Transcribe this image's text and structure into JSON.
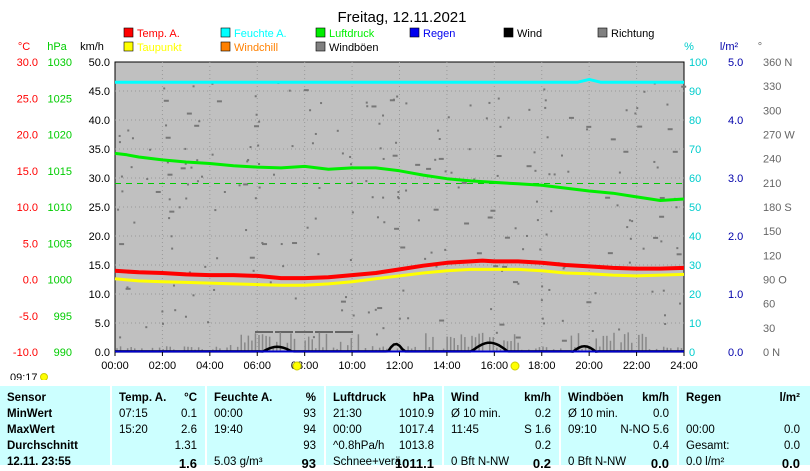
{
  "chart_data": {
    "type": "line",
    "title": "Freitag, 12.11.2021",
    "x_ticks": [
      "00:00",
      "02:00",
      "04:00",
      "06:00",
      "08:00",
      "10:00",
      "12:00",
      "14:00",
      "16:00",
      "18:00",
      "20:00",
      "22:00",
      "24:00"
    ],
    "xlim": [
      "00:00",
      "24:00"
    ],
    "axes": {
      "temp": {
        "unit": "°C",
        "ticks": [
          "30.0",
          "25.0",
          "20.0",
          "15.0",
          "10.0",
          "5.0",
          "0.0",
          "-5.0",
          "-10.0"
        ],
        "range": [
          -10,
          30
        ],
        "color": "#ff0000"
      },
      "pressure": {
        "unit": "hPa",
        "ticks": [
          "1030",
          "1025",
          "1020",
          "1015",
          "1010",
          "1005",
          "1000",
          "995",
          "990"
        ],
        "range": [
          990,
          1030
        ],
        "color": "#00cc00"
      },
      "speed": {
        "unit": "km/h",
        "ticks": [
          "50.0",
          "45.0",
          "40.0",
          "35.0",
          "30.0",
          "25.0",
          "20.0",
          "15.0",
          "10.0",
          "5.0",
          "0.0"
        ],
        "range": [
          0,
          50
        ],
        "color": "#000000"
      },
      "humidity": {
        "unit": "%",
        "ticks": [
          "100",
          "90",
          "80",
          "70",
          "60",
          "50",
          "40",
          "30",
          "20",
          "10",
          "0"
        ],
        "range": [
          0,
          100
        ],
        "color": "#00cccc"
      },
      "rain": {
        "unit": "l/m²",
        "ticks": [
          "5.0",
          "4.0",
          "3.0",
          "2.0",
          "1.0",
          "0.0"
        ],
        "range": [
          0,
          5
        ],
        "color": "#0000aa"
      },
      "direction": {
        "unit": "°",
        "ticks": [
          "360 N",
          "330",
          "300",
          "270 W",
          "240",
          "210",
          "180 S",
          "150",
          "120",
          "90 O",
          "60",
          "30",
          "0   N"
        ],
        "range": [
          0,
          360
        ],
        "color": "#666666"
      }
    },
    "legend": [
      {
        "name": "Temp. A.",
        "color": "#ff0000"
      },
      {
        "name": "Feuchte A.",
        "color": "#00ffff"
      },
      {
        "name": "Luftdruck",
        "color": "#00ee00"
      },
      {
        "name": "Regen",
        "color": "#0000ee"
      },
      {
        "name": "Wind",
        "color": "#000000"
      },
      {
        "name": "Richtung",
        "color": "#808080"
      },
      {
        "name": "Taupunkt",
        "color": "#ffff00"
      },
      {
        "name": "Windchill",
        "color": "#ff8000"
      },
      {
        "name": "Windböen",
        "color": "#808080"
      }
    ],
    "series": [
      {
        "name": "Temp. A.",
        "axis": "temp",
        "color": "#ff0000",
        "x": [
          0,
          1,
          2,
          3,
          4,
          5,
          6,
          7,
          7.5,
          8,
          9,
          10,
          11,
          12,
          13,
          14,
          15,
          15.5,
          16,
          17,
          18,
          19,
          20,
          21,
          22,
          23,
          24
        ],
        "values": [
          1.2,
          1.0,
          0.9,
          0.7,
          0.6,
          0.6,
          0.5,
          0.2,
          0.2,
          0.2,
          0.3,
          0.6,
          0.9,
          1.4,
          1.9,
          2.3,
          2.5,
          2.6,
          2.5,
          2.5,
          2.3,
          2.0,
          1.8,
          1.6,
          1.5,
          1.5,
          1.6
        ]
      },
      {
        "name": "Taupunkt",
        "axis": "temp",
        "color": "#ffff00",
        "x": [
          0,
          1,
          2,
          3,
          4,
          5,
          6,
          7,
          8,
          9,
          10,
          11,
          12,
          13,
          14,
          15,
          16,
          17,
          18,
          19,
          20,
          21,
          22,
          23,
          24
        ],
        "values": [
          0.1,
          -0.2,
          -0.3,
          -0.4,
          -0.5,
          -0.6,
          -0.7,
          -0.8,
          -0.8,
          -0.6,
          -0.3,
          0.1,
          0.5,
          0.9,
          1.2,
          1.4,
          1.4,
          1.4,
          1.2,
          0.9,
          0.8,
          0.6,
          0.5,
          0.6,
          0.7
        ]
      },
      {
        "name": "Luftdruck",
        "axis": "pressure",
        "color": "#00ee00",
        "x": [
          0,
          0.5,
          1,
          2,
          3,
          4,
          5,
          6,
          7,
          8,
          9,
          10,
          11,
          12,
          13,
          14,
          15,
          16,
          17,
          18,
          19,
          20,
          21,
          22,
          23,
          24
        ],
        "values": [
          1017.4,
          1017.2,
          1016.9,
          1016.5,
          1016.2,
          1016.0,
          1015.7,
          1015.5,
          1015.4,
          1015.6,
          1015.2,
          1015.4,
          1015.4,
          1015.0,
          1014.4,
          1013.9,
          1013.6,
          1013.4,
          1013.2,
          1013.0,
          1012.6,
          1012.2,
          1011.9,
          1011.4,
          1010.9,
          1011.1
        ]
      },
      {
        "name": "Feuchte A.",
        "axis": "humidity",
        "color": "#00ffff",
        "x": [
          0,
          4,
          8,
          12,
          16,
          19.5,
          20,
          20.5,
          24
        ],
        "values": [
          93,
          93,
          93,
          93,
          93,
          93,
          94,
          93,
          93
        ]
      }
    ],
    "reference_lines": [
      {
        "axis": "pressure",
        "value": 1013.25,
        "style": "dashed"
      }
    ],
    "annotations": {
      "bottom_left_time": "09:17"
    }
  },
  "table": {
    "columns": [
      {
        "header": "Sensor",
        "rows": [
          "MinWert",
          "MaxWert",
          "Durchschnitt",
          "12.11. 23:55"
        ]
      },
      {
        "header": "Temp. A.",
        "unit": "°C",
        "rows": [
          [
            "07:15",
            "0.1"
          ],
          [
            "15:20",
            "2.6"
          ],
          [
            "",
            "1.31"
          ],
          [
            "",
            "1.6"
          ]
        ]
      },
      {
        "header": "Feuchte A.",
        "unit": "%",
        "rows": [
          [
            "00:00",
            "93"
          ],
          [
            "19:40",
            "94"
          ],
          [
            "",
            "93"
          ],
          [
            "5.03 g/m³",
            "93"
          ]
        ]
      },
      {
        "header": "Luftdruck",
        "unit": "hPa",
        "rows": [
          [
            "21:30",
            "1010.9"
          ],
          [
            "00:00",
            "1017.4"
          ],
          [
            "^0.8hPa/h",
            "1013.8"
          ],
          [
            "Schnee+verä",
            "1011.1"
          ]
        ]
      },
      {
        "header": "Wind",
        "unit": "km/h",
        "rows": [
          [
            "Ø 10 min.",
            "0.2"
          ],
          [
            "11:45",
            "S 1.6"
          ],
          [
            "",
            "0.2"
          ],
          [
            "0 Bft N-NW",
            "0.2"
          ]
        ]
      },
      {
        "header": "Windböen",
        "unit": "km/h",
        "rows": [
          [
            "Ø 10 min.",
            "0.0"
          ],
          [
            "09:10",
            "N-NO 5.6"
          ],
          [
            "",
            "0.4"
          ],
          [
            "0 Bft N-NW",
            "0.0"
          ]
        ]
      },
      {
        "header": "Regen",
        "unit": "l/m²",
        "rows": [
          [
            "",
            ""
          ],
          [
            "00:00",
            "0.0"
          ],
          [
            "Gesamt:",
            "0.0"
          ],
          [
            "0.0 l/m²",
            "0.0"
          ]
        ]
      }
    ]
  }
}
